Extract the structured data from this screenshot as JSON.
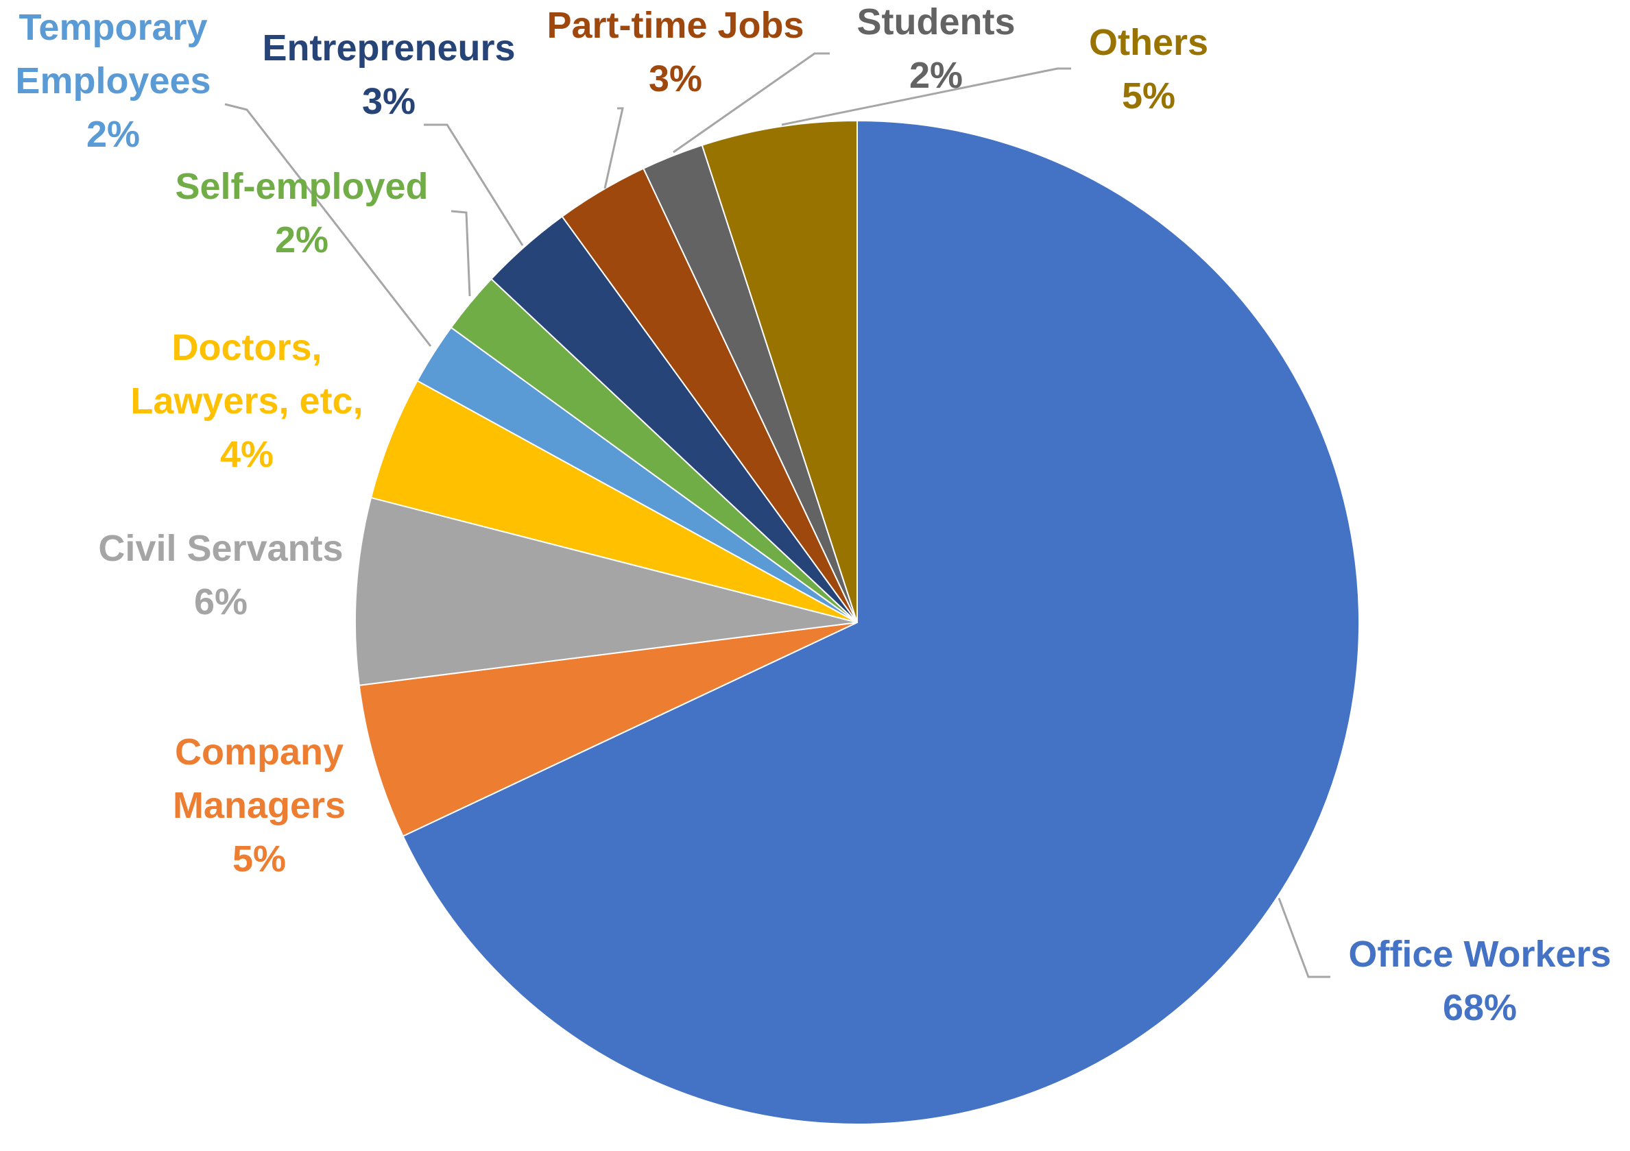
{
  "chart_data": {
    "type": "pie",
    "title": "",
    "start_angle_deg": 0,
    "direction": "clockwise",
    "slices": [
      {
        "label": "Office Workers",
        "value": 68,
        "value_label": "68%",
        "color": "#4472C4"
      },
      {
        "label": "Company Managers",
        "value": 5,
        "value_label": "5%",
        "color": "#ED7D31"
      },
      {
        "label": "Civil Servants",
        "value": 6,
        "value_label": "6%",
        "color": "#A5A5A5"
      },
      {
        "label": "Doctors, Lawyers, etc,",
        "value": 4,
        "value_label": "4%",
        "color": "#FFC000"
      },
      {
        "label": "Temporary Employees",
        "value": 2,
        "value_label": "2%",
        "color": "#5B9BD5"
      },
      {
        "label": "Self-employed",
        "value": 2,
        "value_label": "2%",
        "color": "#70AD47"
      },
      {
        "label": "Entrepreneurs",
        "value": 3,
        "value_label": "3%",
        "color": "#264478"
      },
      {
        "label": "Part-time Jobs",
        "value": 3,
        "value_label": "3%",
        "color": "#9E480E"
      },
      {
        "label": "Students",
        "value": 2,
        "value_label": "2%",
        "color": "#636363"
      },
      {
        "label": "Others",
        "value": 5,
        "value_label": "5%",
        "color": "#997300"
      }
    ],
    "label_colors": {
      "Office Workers": "#4472C4",
      "Company Managers": "#ED7D31",
      "Civil Servants": "#A5A5A5",
      "Doctors, Lawyers, etc,": "#FFC000",
      "Temporary Employees": "#5B9BD5",
      "Self-employed": "#70AD47",
      "Entrepreneurs": "#264478",
      "Part-time Jobs": "#9E480E",
      "Students": "#636363",
      "Others": "#997300"
    },
    "legend": "none",
    "data_labels": "outside-with-leader-lines"
  }
}
